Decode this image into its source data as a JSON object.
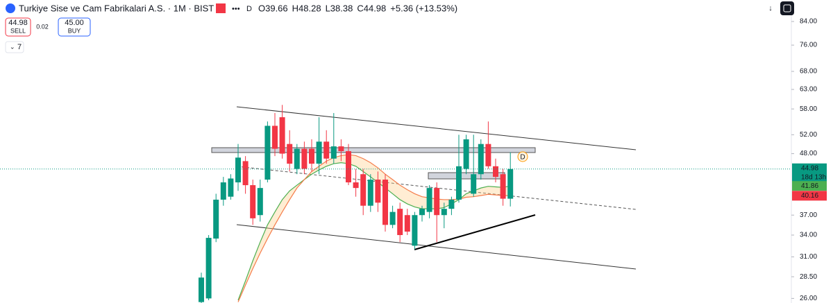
{
  "header": {
    "title": "Turkiye Sise ve Cam Fabrikalari A.S. · 1M · BIST",
    "badge": "D",
    "ohlc": [
      "O39.66",
      "H48.28",
      "L38.38",
      "C44.98",
      "+5.36 (+13.53%)"
    ],
    "sell_price": "44.98",
    "sell": "SELL",
    "spread": "0.02",
    "buy_price": "45.00",
    "buy": "BUY",
    "indicators": "7"
  },
  "price_labels": {
    "last": "44.98",
    "countdown": "18d 13h",
    "ma_fast": "41.86",
    "ma_slow": "40.16",
    "event": "D"
  },
  "chart_data": {
    "type": "candlestick",
    "log_scale": true,
    "up_color": "#089981",
    "down_color": "#f23645",
    "ylim": [
      25.5,
      92
    ],
    "yticks": [
      {
        "value": 26,
        "label": "26.00"
      },
      {
        "value": 28.5,
        "label": "28.50"
      },
      {
        "value": 31,
        "label": "31.00"
      },
      {
        "value": 34,
        "label": "34.00"
      },
      {
        "value": 37,
        "label": "37.00"
      },
      {
        "value": 48,
        "label": "48.00"
      },
      {
        "value": 52,
        "label": "52.00"
      },
      {
        "value": 58,
        "label": "58.00"
      },
      {
        "value": 63,
        "label": "63.00"
      },
      {
        "value": 68,
        "label": "68.00"
      },
      {
        "value": 76,
        "label": "76.00"
      },
      {
        "value": 84,
        "label": "84.00"
      }
    ],
    "open": [
      25.6,
      26,
      33.5,
      39.5,
      40,
      42.5,
      46.5,
      42,
      37,
      43,
      54,
      56,
      50,
      45,
      49,
      49,
      46,
      50.5,
      47,
      49.5,
      48.5,
      42.5,
      44,
      38.5,
      43,
      43,
      35.5,
      38,
      37,
      32.5,
      37,
      37.5,
      41.5,
      37,
      38,
      39.5,
      45,
      40.5,
      44,
      50,
      45.5,
      44,
      39.66
    ],
    "high": [
      29,
      34,
      40.5,
      43.5,
      44,
      50,
      47.5,
      43,
      43,
      55,
      57,
      59,
      53,
      50,
      50.5,
      51,
      56,
      53,
      57,
      51,
      50,
      45,
      45,
      44,
      44.5,
      44,
      38.5,
      39,
      38,
      37.5,
      38.5,
      42,
      42.5,
      39,
      40,
      52,
      52,
      52,
      51,
      55,
      47,
      45,
      48.28
    ],
    "low": [
      25.5,
      25.8,
      33,
      38.5,
      39.5,
      41,
      40.5,
      35.5,
      36,
      42.5,
      47.5,
      47,
      44.5,
      44,
      44,
      44.5,
      44,
      46,
      46,
      46.5,
      42,
      40,
      37,
      37.5,
      37.5,
      34.5,
      35,
      33,
      34,
      32,
      36,
      36.5,
      33,
      35,
      37,
      39,
      44,
      40,
      43,
      45,
      42.5,
      38.5,
      38.38
    ],
    "close": [
      28.4,
      33.6,
      39.5,
      42.5,
      43.2,
      47.2,
      42,
      36.5,
      41.5,
      54,
      49,
      48,
      46,
      49,
      45,
      46,
      50.5,
      47,
      49.5,
      48.5,
      42.5,
      41.5,
      38.5,
      43,
      39,
      35.5,
      37.5,
      34,
      34.5,
      37,
      38,
      41.5,
      37,
      38,
      39.5,
      45.5,
      51,
      44,
      50,
      45.5,
      43.5,
      39.66,
      44.98
    ],
    "series": [
      {
        "color": "#4caf50",
        "values": [
          null,
          null,
          null,
          null,
          null,
          25.8,
          28,
          30.5,
          33,
          35.5,
          37.5,
          39.5,
          41,
          42,
          43,
          44,
          44.8,
          45.5,
          46,
          46.2,
          46,
          45.5,
          44.5,
          43.5,
          42.5,
          41.5,
          40.5,
          39.5,
          38.8,
          38.3,
          38,
          38,
          38,
          38.2,
          38.8,
          39.5,
          40.5,
          41,
          41.5,
          41.8,
          41.7,
          41.6,
          41.86
        ]
      },
      {
        "color": "#f57c4a",
        "values": [
          null,
          null,
          null,
          null,
          null,
          25.6,
          27.5,
          29.5,
          31.5,
          33.5,
          35.5,
          37.5,
          39.5,
          41.5,
          43,
          44.5,
          45.5,
          46.5,
          47.2,
          47.6,
          47.8,
          47.6,
          47,
          46.2,
          45.2,
          44,
          43,
          42,
          41.2,
          40.5,
          40,
          39.8,
          39.6,
          39.5,
          39.5,
          39.6,
          39.9,
          40,
          40.2,
          40.4,
          40.3,
          40.2,
          40.16
        ]
      }
    ]
  }
}
